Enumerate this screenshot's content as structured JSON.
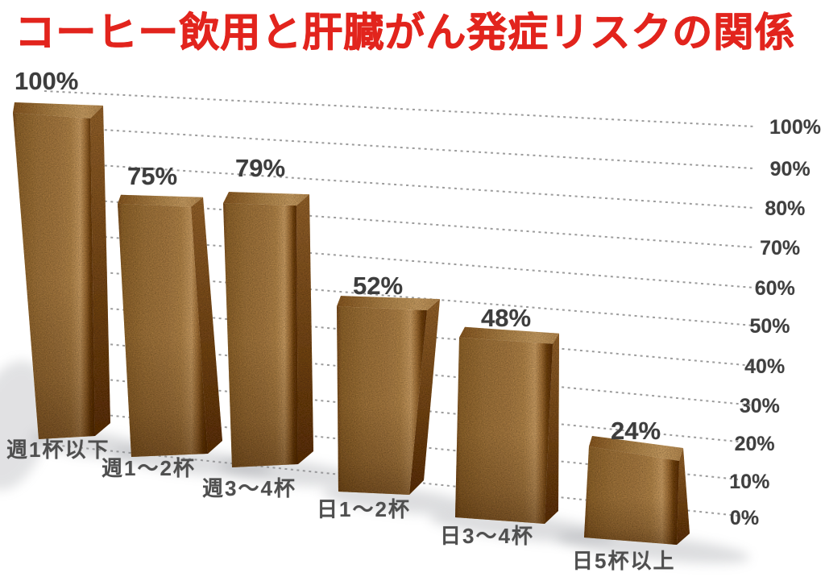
{
  "title": {
    "text": "コーヒー飲用と肝臓がん発症リスクの関係",
    "color": "#e2241d"
  },
  "chart_data": {
    "type": "bar",
    "style": "3d-perspective",
    "title": "コーヒー飲用と肝臓がん発症リスクの関係",
    "categories": [
      "週1杯以下",
      "週1～2杯",
      "週3～4杯",
      "日1～2杯",
      "日3～4杯",
      "日5杯以上"
    ],
    "values": [
      100,
      75,
      79,
      52,
      48,
      24
    ],
    "data_labels": [
      "100%",
      "75%",
      "79%",
      "52%",
      "48%",
      "24%"
    ],
    "xlabel": "",
    "ylabel": "",
    "ylim": [
      0,
      100
    ],
    "y_axis": {
      "side": "right",
      "unit": "%",
      "ticks": [
        "100%",
        "90%",
        "80%",
        "70%",
        "60%",
        "50%",
        "40%",
        "30%",
        "20%",
        "10%",
        "0%"
      ]
    },
    "grid": {
      "visible": true,
      "style": "dashed",
      "color": "#9c9c9c"
    },
    "legend": {
      "visible": false
    },
    "colors": {
      "bar_mid": "#c79250",
      "bar_highlight": "#eeb975",
      "bar_dark_edge": "#6d3a0e",
      "bar_top": "#d8a360",
      "value_label": "#3d3d3d",
      "tick_label": "#3f3f3f",
      "category_label": "#4f4f4f",
      "title": "#e2241d",
      "background": "#ffffff"
    }
  }
}
